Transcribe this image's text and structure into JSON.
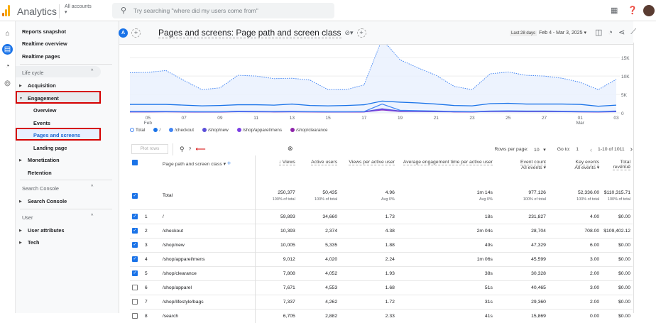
{
  "app": {
    "title": "Analytics",
    "accounts_label": "All accounts",
    "search_placeholder": "Try searching \"where did my users come from\""
  },
  "sidebar": {
    "top": [
      "Reports snapshot",
      "Realtime overview",
      "Realtime pages"
    ],
    "lifecycle": {
      "header": "Life cycle",
      "items": [
        "Acquisition",
        "Engagement",
        "Overview",
        "Events",
        "Pages and screens",
        "Landing page",
        "Monetization",
        "Retention"
      ]
    },
    "search_console": {
      "header": "Search Console",
      "items": [
        "Search Console"
      ]
    },
    "user": {
      "header": "User",
      "items": [
        "User attributes",
        "Tech"
      ]
    }
  },
  "header": {
    "avatar_letter": "A",
    "title": "Pages and screens: Page path and screen class",
    "date_preset": "Last 28 days",
    "date_range": "Feb 4 - Mar 3, 2025"
  },
  "colors": {
    "accent": "#1a73e8",
    "highlight_border": "#d50000"
  },
  "chart_data": {
    "type": "line",
    "x": [
      "Feb 4",
      "Feb 5",
      "Feb 6",
      "Feb 7",
      "Feb 8",
      "Feb 9",
      "Feb 10",
      "Feb 11",
      "Feb 12",
      "Feb 13",
      "Feb 14",
      "Feb 15",
      "Feb 16",
      "Feb 17",
      "Feb 18",
      "Feb 19",
      "Feb 20",
      "Feb 21",
      "Feb 22",
      "Feb 23",
      "Feb 24",
      "Feb 25",
      "Feb 26",
      "Feb 27",
      "Feb 28",
      "Mar 1",
      "Mar 2",
      "Mar 3"
    ],
    "x_ticks": [
      {
        "label": "05",
        "sub": "Feb",
        "i": 1
      },
      {
        "label": "07",
        "i": 3
      },
      {
        "label": "09",
        "i": 5
      },
      {
        "label": "11",
        "i": 7
      },
      {
        "label": "13",
        "i": 9
      },
      {
        "label": "15",
        "i": 11
      },
      {
        "label": "17",
        "i": 13
      },
      {
        "label": "19",
        "i": 15
      },
      {
        "label": "21",
        "i": 17
      },
      {
        "label": "23",
        "i": 19
      },
      {
        "label": "25",
        "i": 21
      },
      {
        "label": "27",
        "i": 23
      },
      {
        "label": "01",
        "sub": "Mar",
        "i": 25
      },
      {
        "label": "03",
        "i": 27
      }
    ],
    "y_ticks": [
      "0",
      "5K",
      "10K",
      "15K"
    ],
    "ylim": [
      0,
      18500
    ],
    "series": [
      {
        "name": "Total",
        "color": "#4285f4",
        "dashed": true,
        "values": [
          10900,
          11000,
          11500,
          8800,
          6300,
          6800,
          10200,
          10000,
          9300,
          9400,
          8900,
          6300,
          6300,
          7600,
          20000,
          14400,
          12200,
          10200,
          7200,
          6300,
          10600,
          11100,
          10200,
          10000,
          9400,
          8300,
          6300,
          9100
        ]
      },
      {
        "name": "/",
        "color": "#1a73e8",
        "values": [
          2300,
          2300,
          2300,
          2100,
          1900,
          2000,
          2200,
          2200,
          2100,
          2400,
          2000,
          1900,
          2000,
          2200,
          3200,
          2900,
          2700,
          2400,
          2000,
          1900,
          2500,
          2600,
          2400,
          2400,
          2400,
          2300,
          1800,
          2100
        ]
      },
      {
        "name": "/checkout",
        "color": "#4285f4",
        "values": [
          400,
          400,
          400,
          350,
          300,
          300,
          450,
          400,
          380,
          400,
          350,
          300,
          300,
          350,
          2400,
          700,
          600,
          500,
          400,
          350,
          500,
          550,
          500,
          500,
          450,
          400,
          350,
          500
        ]
      },
      {
        "name": "/shop/new",
        "color": "#5b4fd9",
        "values": [
          350,
          350,
          350,
          300,
          300,
          300,
          400,
          380,
          350,
          380,
          330,
          300,
          300,
          320,
          1100,
          500,
          450,
          400,
          350,
          300,
          450,
          450,
          400,
          420,
          400,
          350,
          300,
          400
        ]
      },
      {
        "name": "/shop/apparel/mens",
        "color": "#7b3fe4",
        "values": [
          300,
          300,
          320,
          280,
          250,
          260,
          350,
          330,
          300,
          330,
          300,
          260,
          260,
          280,
          900,
          450,
          400,
          350,
          300,
          280,
          400,
          400,
          380,
          380,
          350,
          300,
          280,
          350
        ]
      },
      {
        "name": "/shop/clearance",
        "color": "#8e24aa",
        "values": [
          280,
          280,
          300,
          260,
          230,
          240,
          320,
          300,
          280,
          300,
          270,
          240,
          240,
          260,
          800,
          400,
          380,
          330,
          280,
          260,
          370,
          380,
          350,
          350,
          330,
          290,
          260,
          330
        ]
      }
    ]
  },
  "table": {
    "plot_rows": "Plot rows",
    "search_text": "?",
    "rows_per_page_label": "Rows per page:",
    "rows_per_page": "10",
    "goto_label": "Go to:",
    "goto": "1",
    "pagination": "1-10 of 1011",
    "headers": {
      "dimension": "Page path and screen class",
      "views": "↓ Views",
      "active_users": "Active users",
      "views_per_user": "Views per active user",
      "avg_engagement": "Average engagement time per active user",
      "event_count": "Event count",
      "key_events": "Key events",
      "revenue": "Total revenue",
      "event_filter": "All events",
      "key_filter": "All events"
    },
    "total": {
      "label": "Total",
      "views": "250,377",
      "views_sub": "100% of total",
      "active_users": "50,435",
      "active_users_sub": "100% of total",
      "vpu": "4.96",
      "vpu_sub": "Avg 0%",
      "aet": "1m 14s",
      "aet_sub": "Avg 0%",
      "events": "977,126",
      "events_sub": "100% of total",
      "key": "52,336.00",
      "key_sub": "100% of total",
      "revenue": "$110,315.71",
      "revenue_sub": "100% of total"
    },
    "rows": [
      {
        "n": "1",
        "path": "/",
        "views": "59,893",
        "users": "34,660",
        "vpu": "1.73",
        "aet": "18s",
        "events": "231,827",
        "key": "4.00",
        "rev": "$0.00",
        "checked": true
      },
      {
        "n": "2",
        "path": "/checkout",
        "views": "10,393",
        "users": "2,374",
        "vpu": "4.38",
        "aet": "2m 04s",
        "events": "28,704",
        "key": "708.00",
        "rev": "$109,402.12",
        "checked": true
      },
      {
        "n": "3",
        "path": "/shop/new",
        "views": "10,005",
        "users": "5,335",
        "vpu": "1.88",
        "aet": "49s",
        "events": "47,329",
        "key": "6.00",
        "rev": "$0.00",
        "checked": true
      },
      {
        "n": "4",
        "path": "/shop/apparel/mens",
        "views": "9,012",
        "users": "4,020",
        "vpu": "2.24",
        "aet": "1m 06s",
        "events": "45,599",
        "key": "3.00",
        "rev": "$0.00",
        "checked": true
      },
      {
        "n": "5",
        "path": "/shop/clearance",
        "views": "7,808",
        "users": "4,052",
        "vpu": "1.93",
        "aet": "38s",
        "events": "30,328",
        "key": "2.00",
        "rev": "$0.00",
        "checked": true
      },
      {
        "n": "6",
        "path": "/shop/apparel",
        "views": "7,671",
        "users": "4,553",
        "vpu": "1.68",
        "aet": "51s",
        "events": "40,465",
        "key": "3.00",
        "rev": "$0.00",
        "checked": false
      },
      {
        "n": "7",
        "path": "/shop/lifestyle/bags",
        "views": "7,337",
        "users": "4,262",
        "vpu": "1.72",
        "aet": "31s",
        "events": "29,360",
        "key": "2.00",
        "rev": "$0.00",
        "checked": false
      },
      {
        "n": "8",
        "path": "/search",
        "views": "6,705",
        "users": "2,882",
        "vpu": "2.33",
        "aet": "41s",
        "events": "15,869",
        "key": "0.00",
        "rev": "$0.00",
        "checked": false
      }
    ]
  }
}
